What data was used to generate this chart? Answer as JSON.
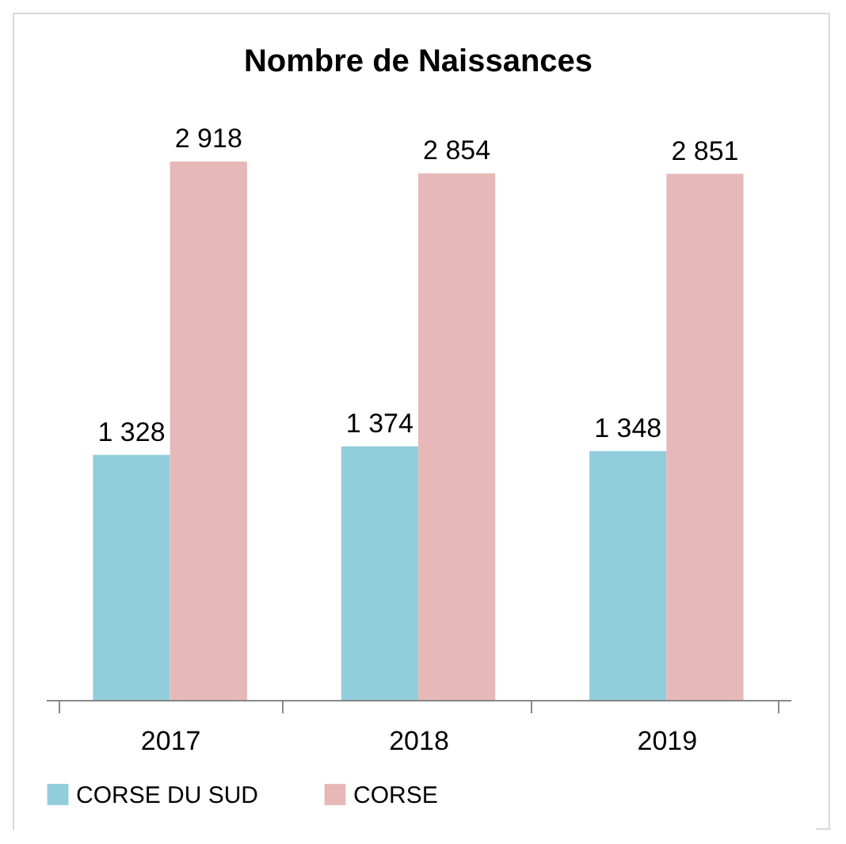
{
  "chart_data": {
    "type": "bar",
    "title": "Nombre de Naissances",
    "categories": [
      "2017",
      "2018",
      "2019"
    ],
    "series": [
      {
        "name": "CORSE DU SUD",
        "color": "#92cddc",
        "values": [
          1328,
          1374,
          1348
        ],
        "value_labels": [
          "1 328",
          "1 374",
          "1 348"
        ]
      },
      {
        "name": "CORSE",
        "color": "#e6b9b8",
        "values": [
          2918,
          2854,
          2851
        ],
        "value_labels": [
          "2 918",
          "2 854",
          "2 851"
        ]
      }
    ],
    "legend": "bottom",
    "grid": false
  }
}
